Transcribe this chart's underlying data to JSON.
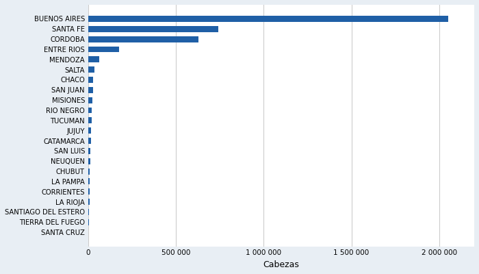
{
  "provinces": [
    "BUENOS AIRES",
    "SANTA FE",
    "CORDOBA",
    "ENTRE RIOS",
    "MENDOZA",
    "SALTA",
    "CHACO",
    "SAN JUAN",
    "MISIONES",
    "RIO NEGRO",
    "TUCUMAN",
    "JUJUY",
    "CATAMARCA",
    "SAN LUIS",
    "NEUQUEN",
    "CHUBUT",
    "LA PAMPA",
    "CORRIENTES",
    "LA RIOJA",
    "SANTIAGO DEL ESTERO",
    "TIERRA DEL FUEGO",
    "SANTA CRUZ"
  ],
  "values": [
    2050000,
    740000,
    630000,
    175000,
    65000,
    35000,
    30000,
    28000,
    25000,
    22000,
    20000,
    18000,
    16000,
    14000,
    12000,
    10000,
    9000,
    8000,
    7000,
    5000,
    3000,
    2000
  ],
  "bar_color": "#1f5fa6",
  "background_color": "#e8eef4",
  "plot_background": "#ffffff",
  "xlabel": "Cabezas",
  "xlim": [
    0,
    2200000
  ],
  "xticks": [
    0,
    500000,
    1000000,
    1500000,
    2000000
  ],
  "xtick_labels": [
    "0",
    "500 000",
    "1 000 000",
    "1 500 000",
    "2 000 000"
  ],
  "label_fontsize": 7.2,
  "xlabel_fontsize": 9,
  "tick_fontsize": 7.5
}
